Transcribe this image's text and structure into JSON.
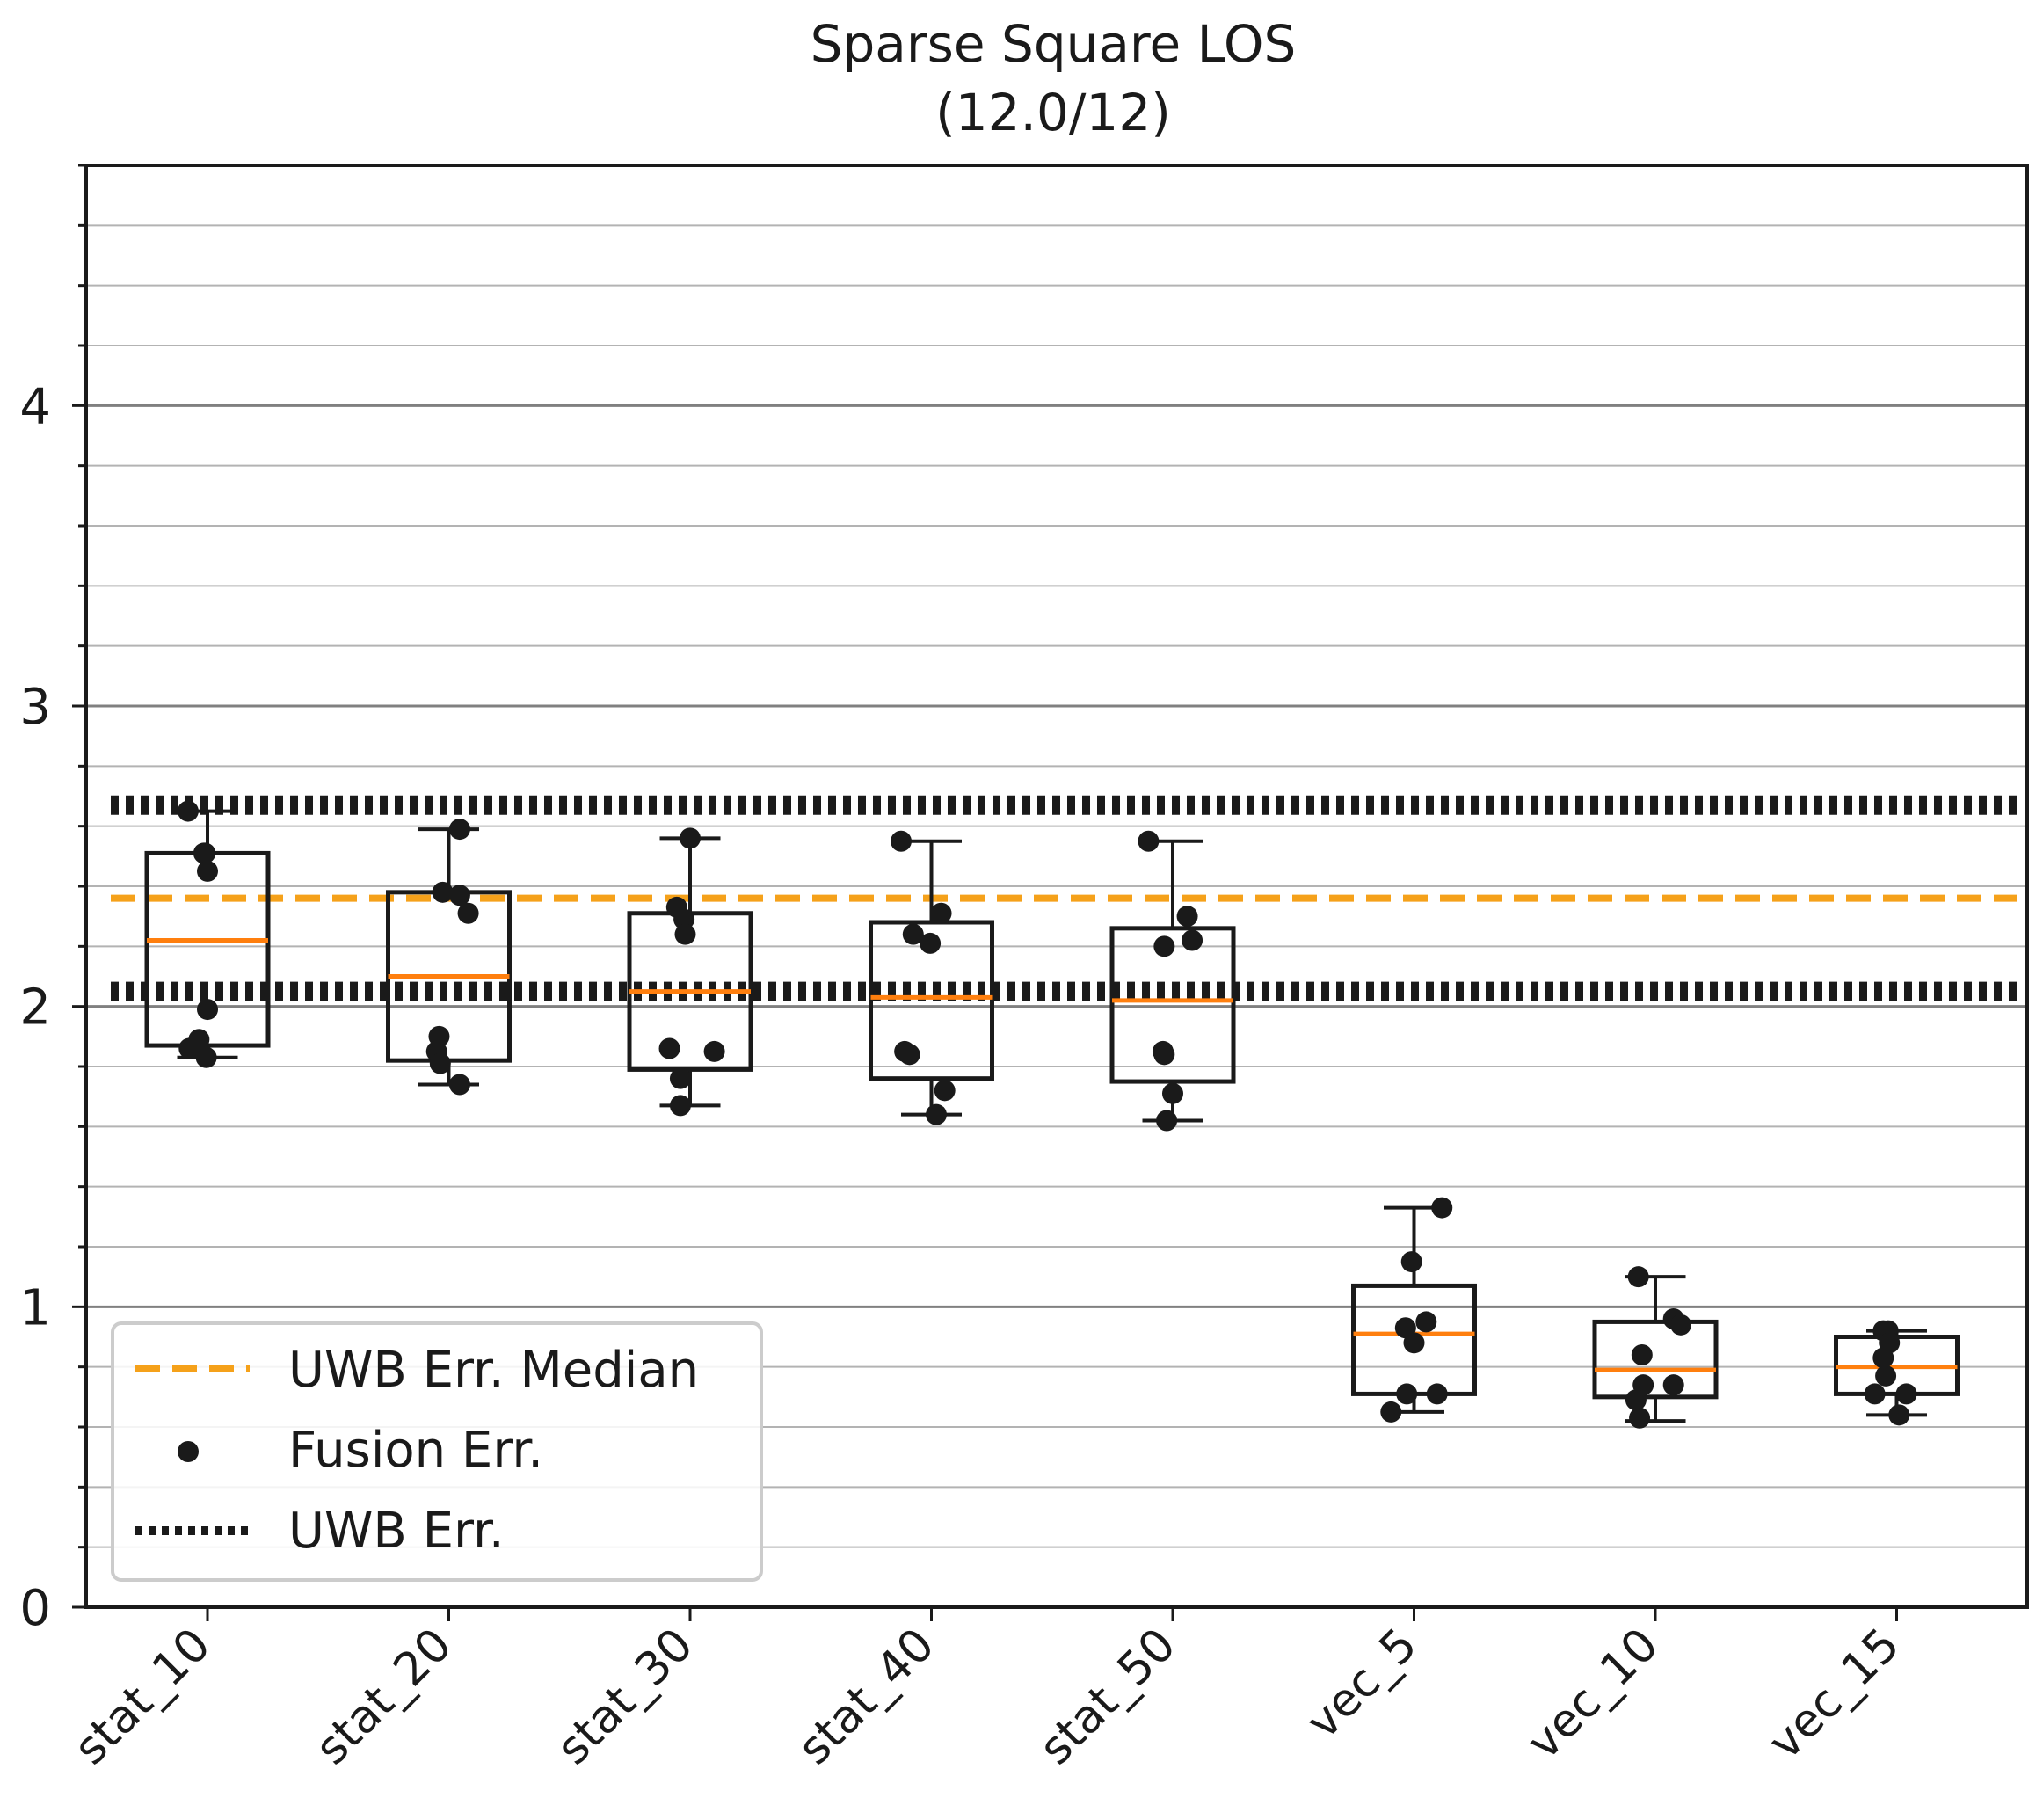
{
  "chart_data": {
    "type": "box",
    "title": "Sparse Square LOS",
    "subtitle": "(12.0/12)",
    "xlabel": "",
    "ylabel": "",
    "ylim": [
      0,
      4.8
    ],
    "yticks": [
      0,
      1,
      2,
      3,
      4
    ],
    "ytick_labels": [
      "0",
      "1",
      "2",
      "3",
      "4"
    ],
    "minor_ytick_step": 0.2,
    "grid": true,
    "categories": [
      "stat_10",
      "stat_20",
      "stat_30",
      "stat_40",
      "stat_50",
      "vec_5",
      "vec_10",
      "vec_15"
    ],
    "boxes": [
      {
        "q1": 1.87,
        "median": 2.22,
        "q3": 2.51,
        "whisker_low": 1.83,
        "whisker_high": 2.65
      },
      {
        "q1": 1.82,
        "median": 2.1,
        "q3": 2.38,
        "whisker_low": 1.74,
        "whisker_high": 2.59
      },
      {
        "q1": 1.79,
        "median": 2.05,
        "q3": 2.31,
        "whisker_low": 1.67,
        "whisker_high": 2.56
      },
      {
        "q1": 1.76,
        "median": 2.03,
        "q3": 2.28,
        "whisker_low": 1.64,
        "whisker_high": 2.55
      },
      {
        "q1": 1.75,
        "median": 2.02,
        "q3": 2.26,
        "whisker_low": 1.62,
        "whisker_high": 2.55
      },
      {
        "q1": 0.71,
        "median": 0.91,
        "q3": 1.07,
        "whisker_low": 0.65,
        "whisker_high": 1.33
      },
      {
        "q1": 0.7,
        "median": 0.79,
        "q3": 0.95,
        "whisker_low": 0.62,
        "whisker_high": 1.1
      },
      {
        "q1": 0.71,
        "median": 0.8,
        "q3": 0.9,
        "whisker_low": 0.64,
        "whisker_high": 0.92
      }
    ],
    "points": [
      {
        "offsets": [
          -0.16,
          -0.02,
          -0.03,
          0.0,
          0.0,
          -0.07,
          -0.15,
          -0.01
        ],
        "values": [
          2.65,
          2.51,
          2.51,
          2.45,
          1.99,
          1.89,
          1.86,
          1.83
        ]
      },
      {
        "offsets": [
          0.09,
          -0.05,
          0.09,
          0.16,
          -0.08,
          -0.1,
          -0.07,
          0.09
        ],
        "values": [
          2.59,
          2.38,
          2.37,
          2.31,
          1.9,
          1.85,
          1.81,
          1.74
        ]
      },
      {
        "offsets": [
          0.0,
          -0.11,
          -0.05,
          -0.04,
          -0.17,
          0.2,
          -0.08,
          -0.08
        ],
        "values": [
          2.56,
          2.33,
          2.29,
          2.24,
          1.86,
          1.85,
          1.76,
          1.67
        ]
      },
      {
        "offsets": [
          -0.25,
          0.08,
          -0.15,
          -0.01,
          -0.22,
          -0.18,
          0.11,
          0.04
        ],
        "values": [
          2.55,
          2.31,
          2.24,
          2.21,
          1.85,
          1.84,
          1.72,
          1.64
        ]
      },
      {
        "offsets": [
          -0.2,
          0.12,
          0.16,
          -0.07,
          -0.08,
          -0.07,
          0.0,
          -0.05
        ],
        "values": [
          2.55,
          2.3,
          2.22,
          2.2,
          1.85,
          1.84,
          1.71,
          1.62
        ]
      },
      {
        "offsets": [
          0.23,
          -0.02,
          0.1,
          -0.07,
          0.0,
          0.19,
          -0.06,
          -0.19
        ],
        "values": [
          1.33,
          1.15,
          0.95,
          0.93,
          0.88,
          0.71,
          0.71,
          0.65
        ]
      },
      {
        "offsets": [
          -0.14,
          0.15,
          0.21,
          -0.11,
          -0.1,
          -0.16,
          -0.13,
          0.15
        ],
        "values": [
          1.1,
          0.96,
          0.94,
          0.84,
          0.74,
          0.69,
          0.63,
          0.74
        ]
      },
      {
        "offsets": [
          -0.11,
          -0.07,
          -0.06,
          -0.11,
          -0.09,
          0.08,
          -0.18,
          0.02
        ],
        "values": [
          0.92,
          0.92,
          0.88,
          0.83,
          0.77,
          0.71,
          0.71,
          0.64
        ]
      }
    ],
    "uwb_err_median": 2.36,
    "uwb_err_lines": [
      2.05,
      2.67
    ],
    "legend": {
      "position": "lower-left",
      "entries": [
        "UWB Err. Median",
        "Fusion Err.",
        "UWB Err."
      ]
    },
    "colors": {
      "median_line": "#ff7f0e",
      "uwb_median": "#f5a11a",
      "points": "#1a1a1a",
      "box": "#1a1a1a",
      "major_grid": "#808080",
      "minor_grid": "#b3b3b3"
    }
  }
}
